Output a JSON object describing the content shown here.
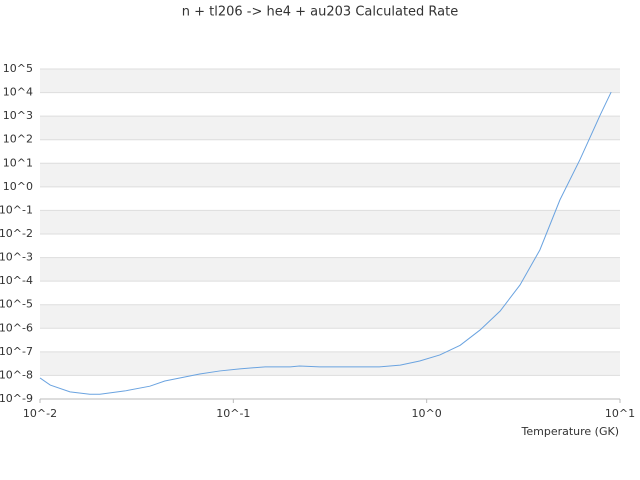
{
  "chart_data": {
    "type": "line",
    "title": "n + tl206 -> he4 + au203 Calculated Rate",
    "x_label": "Temperature (GK)",
    "x": [
      0.01,
      0.0113,
      0.0143,
      0.0181,
      0.0204,
      0.0275,
      0.037,
      0.0442,
      0.067,
      0.0852,
      0.108,
      0.146,
      0.197,
      0.22,
      0.28,
      0.57,
      0.73,
      0.92,
      1.17,
      1.49,
      1.89,
      2.4,
      3.04,
      3.85,
      4.89,
      6.2,
      7.9,
      9.0
    ],
    "values": [
      7.8e-09,
      3.9e-09,
      2e-09,
      1.6e-09,
      1.6e-09,
      2.2e-09,
      3.5e-09,
      5.8e-09,
      1.15e-08,
      1.55e-08,
      1.9e-08,
      2.3e-08,
      2.3e-08,
      2.5e-08,
      2.3e-08,
      2.3e-08,
      2.75e-08,
      4.1e-08,
      7.4e-08,
      1.9e-07,
      8.5e-07,
      5.4e-06,
      6.9e-05,
      0.0021,
      0.28,
      14,
      1120,
      10500
    ],
    "color": "#6aa3e0",
    "xscale": "log",
    "yscale": "log",
    "grid": true,
    "xlim": [
      0.01,
      10
    ],
    "ylim": [
      1e-09,
      100000.0
    ],
    "xticks": [
      {
        "value": 0.01,
        "label": "10^-2"
      },
      {
        "value": 0.1,
        "label": "10^-1"
      },
      {
        "value": 1,
        "label": "10^0"
      },
      {
        "value": 10,
        "label": "10^1"
      }
    ],
    "yticks": [
      {
        "value": 100000.0,
        "label": "10^5"
      },
      {
        "value": 10000.0,
        "label": "10^4"
      },
      {
        "value": 1000.0,
        "label": "10^3"
      },
      {
        "value": 100.0,
        "label": "10^2"
      },
      {
        "value": 10.0,
        "label": "10^1"
      },
      {
        "value": 1,
        "label": "10^0"
      },
      {
        "value": 0.1,
        "label": "10^-1"
      },
      {
        "value": 0.01,
        "label": "10^-2"
      },
      {
        "value": 0.001,
        "label": "10^-3"
      },
      {
        "value": 0.0001,
        "label": "10^-4"
      },
      {
        "value": 1e-05,
        "label": "10^-5"
      },
      {
        "value": 1e-06,
        "label": "10^-6"
      },
      {
        "value": 1e-07,
        "label": "10^-7"
      },
      {
        "value": 1e-08,
        "label": "10^-8"
      },
      {
        "value": 1e-09,
        "label": "10^-9"
      }
    ]
  }
}
